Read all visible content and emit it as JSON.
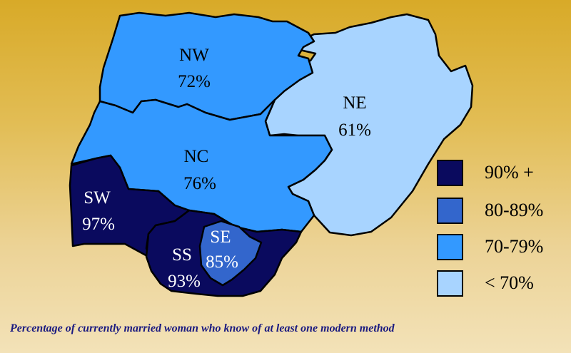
{
  "regions": [
    {
      "code": "NW",
      "value": "72%",
      "color": "#3399ff",
      "text_color": "#000000"
    },
    {
      "code": "NE",
      "value": "61%",
      "color": "#a8d4ff",
      "text_color": "#000000"
    },
    {
      "code": "NC",
      "value": "76%",
      "color": "#3399ff",
      "text_color": "#000000"
    },
    {
      "code": "SW",
      "value": "97%",
      "color": "#0a0a5e",
      "text_color": "#ffffff"
    },
    {
      "code": "SS",
      "value": "93%",
      "color": "#0a0a5e",
      "text_color": "#ffffff"
    },
    {
      "code": "SE",
      "value": "85%",
      "color": "#3366cc",
      "text_color": "#ffffff"
    }
  ],
  "legend": [
    {
      "label": "90% +",
      "color": "#0a0a5e"
    },
    {
      "label": "80-89%",
      "color": "#3366cc"
    },
    {
      "label": "70-79%",
      "color": "#3399ff"
    },
    {
      "label": "< 70%",
      "color": "#a8d4ff"
    }
  ],
  "caption": "Percentage of currently married woman who know of at least one modern method"
}
